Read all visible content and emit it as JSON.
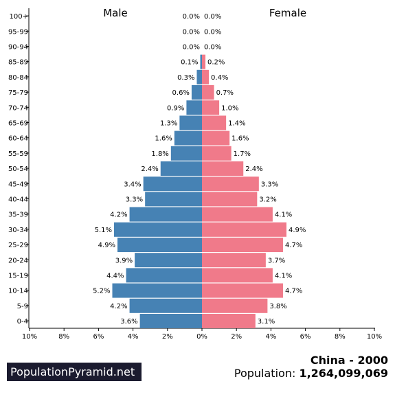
{
  "chart_data": {
    "type": "bar",
    "orientation": "horizontal-butterfly",
    "left_label": "Male",
    "right_label": "Female",
    "categories": [
      "100+",
      "95-99",
      "90-94",
      "85-89",
      "80-84",
      "75-79",
      "70-74",
      "65-69",
      "60-64",
      "55-59",
      "50-54",
      "45-49",
      "40-44",
      "35-39",
      "30-34",
      "25-29",
      "20-24",
      "15-19",
      "10-14",
      "5-9",
      "0-4"
    ],
    "series": [
      {
        "name": "Male",
        "side": "left",
        "values": [
          0.0,
          0.0,
          0.0,
          0.1,
          0.3,
          0.6,
          0.9,
          1.3,
          1.6,
          1.8,
          2.4,
          3.4,
          3.3,
          4.2,
          5.1,
          4.9,
          3.9,
          4.4,
          5.2,
          4.2,
          3.6
        ],
        "labels": [
          "0.0%",
          "0.0%",
          "0.0%",
          "0.1%",
          "0.3%",
          "0.6%",
          "0.9%",
          "1.3%",
          "1.6%",
          "1.8%",
          "2.4%",
          "3.4%",
          "3.3%",
          "4.2%",
          "5.1%",
          "4.9%",
          "3.9%",
          "4.4%",
          "5.2%",
          "4.2%",
          "3.6%"
        ]
      },
      {
        "name": "Female",
        "side": "right",
        "values": [
          0.0,
          0.0,
          0.0,
          0.2,
          0.4,
          0.7,
          1.0,
          1.4,
          1.6,
          1.7,
          2.4,
          3.3,
          3.2,
          4.1,
          4.9,
          4.7,
          3.7,
          4.1,
          4.7,
          3.8,
          3.1
        ],
        "labels": [
          "0.0%",
          "0.0%",
          "0.0%",
          "0.2%",
          "0.4%",
          "0.7%",
          "1.0%",
          "1.4%",
          "1.6%",
          "1.7%",
          "2.4%",
          "3.3%",
          "3.2%",
          "4.1%",
          "4.9%",
          "4.7%",
          "3.7%",
          "4.1%",
          "4.7%",
          "3.8%",
          "3.1%"
        ]
      }
    ],
    "xlim": [
      -10,
      10
    ],
    "xticks": [
      -10,
      -8,
      -6,
      -4,
      -2,
      0,
      2,
      4,
      6,
      8,
      10
    ],
    "xtick_labels": [
      "10%",
      "8%",
      "6%",
      "4%",
      "2%",
      "0%",
      "2%",
      "4%",
      "6%",
      "8%",
      "10%"
    ],
    "xtick_labels_right": [
      "0%",
      "2%",
      "4%",
      "6%",
      "8%",
      "10%"
    ],
    "grid": false,
    "colors": {
      "Male": "#4682b4",
      "Female": "#f07a8a"
    }
  },
  "footer": {
    "brand": "PopulationPyramid.net",
    "title": "China - 2000",
    "population_label": "Population:",
    "population_value": "1,264,099,069"
  }
}
